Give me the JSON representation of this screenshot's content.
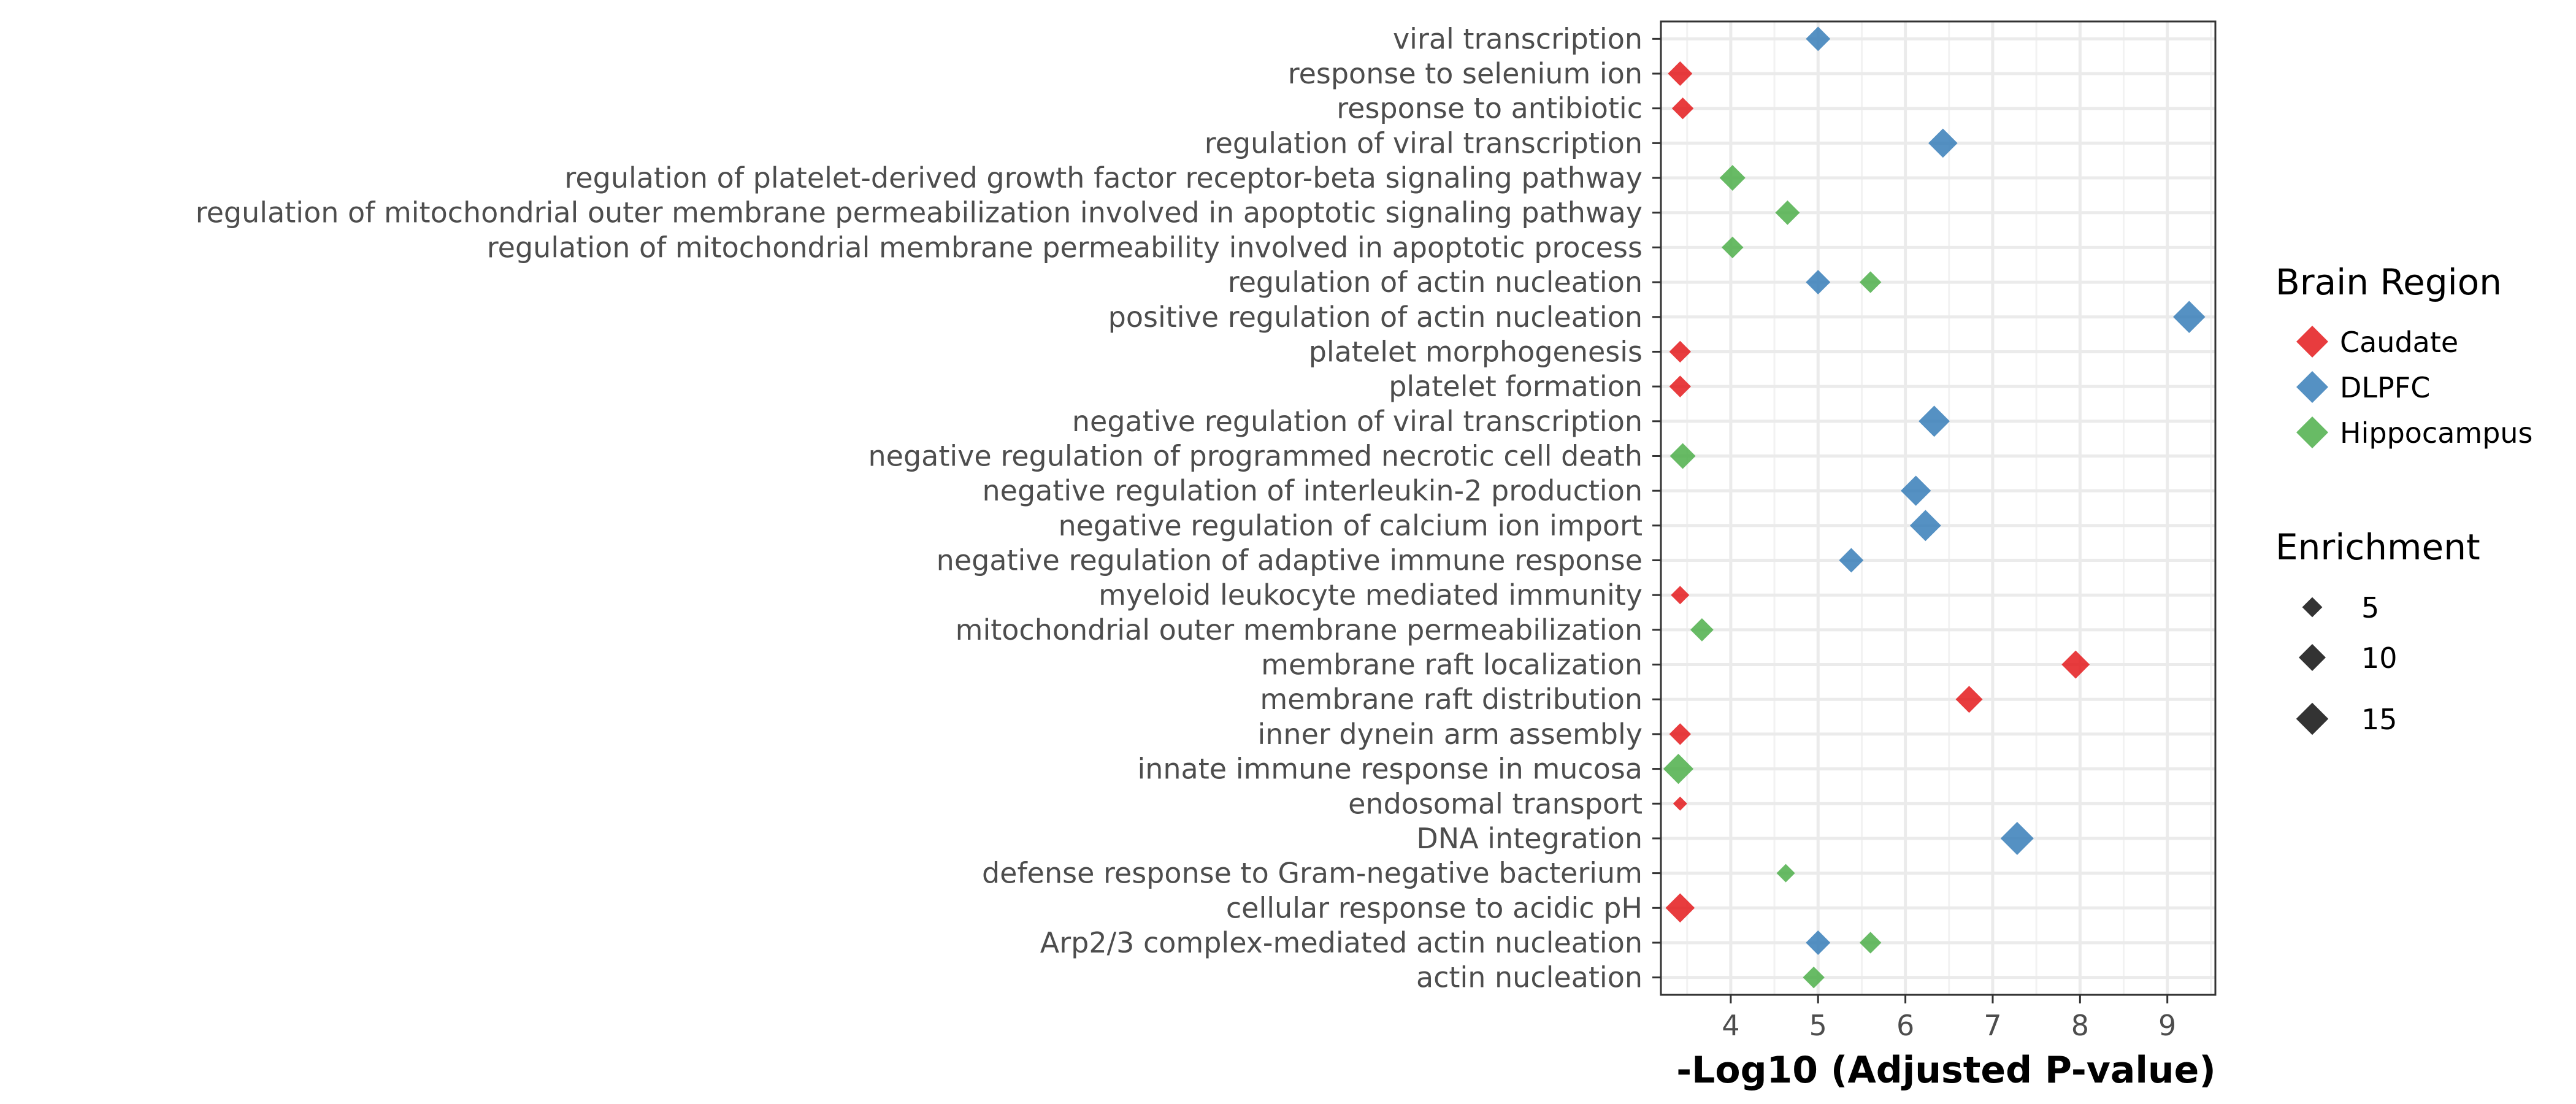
{
  "chart_data": {
    "type": "scatter",
    "xlabel": "-Log10 (Adjusted P-value)",
    "ylabel": "",
    "xlim": [
      3.2,
      9.55
    ],
    "xticks": [
      4,
      5,
      6,
      7,
      8,
      9
    ],
    "grid": true,
    "legend_placement": "right",
    "categories": [
      "viral transcription",
      "response to selenium ion",
      "response to antibiotic",
      "regulation of viral transcription",
      "regulation of platelet-derived growth factor receptor-beta signaling pathway",
      "regulation of mitochondrial outer membrane permeabilization involved in apoptotic signaling pathway",
      "regulation of mitochondrial membrane permeability involved in apoptotic process",
      "regulation of actin nucleation",
      "positive regulation of actin nucleation",
      "platelet morphogenesis",
      "platelet formation",
      "negative regulation of viral transcription",
      "negative regulation of programmed necrotic cell death",
      "negative regulation of interleukin-2 production",
      "negative regulation of calcium ion import",
      "negative regulation of adaptive immune response",
      "myeloid leukocyte mediated immunity",
      "mitochondrial outer membrane permeabilization",
      "membrane raft localization",
      "membrane raft distribution",
      "inner dynein arm assembly",
      "innate immune response in mucosa",
      "endosomal transport",
      "DNA integration",
      "defense response to Gram-negative bacterium",
      "cellular response to acidic pH",
      "Arp2/3 complex-mediated actin nucleation",
      "actin nucleation"
    ],
    "series": [
      {
        "name": "Caudate",
        "color": "#e41a1c",
        "points": [
          {
            "term": "response to selenium ion",
            "x": 3.42,
            "enrichment": 8
          },
          {
            "term": "response to antibiotic",
            "x": 3.45,
            "enrichment": 6
          },
          {
            "term": "platelet morphogenesis",
            "x": 3.42,
            "enrichment": 6
          },
          {
            "term": "platelet formation",
            "x": 3.42,
            "enrichment": 6
          },
          {
            "term": "myeloid leukocyte mediated immunity",
            "x": 3.42,
            "enrichment": 4
          },
          {
            "term": "membrane raft localization",
            "x": 7.95,
            "enrichment": 11
          },
          {
            "term": "membrane raft distribution",
            "x": 6.73,
            "enrichment": 10
          },
          {
            "term": "inner dynein arm assembly",
            "x": 3.42,
            "enrichment": 6
          },
          {
            "term": "endosomal transport",
            "x": 3.42,
            "enrichment": 2
          },
          {
            "term": "cellular response to acidic pH",
            "x": 3.42,
            "enrichment": 12
          }
        ]
      },
      {
        "name": "DLPFC",
        "color": "#377eb8",
        "points": [
          {
            "term": "viral transcription",
            "x": 5.0,
            "enrichment": 8
          },
          {
            "term": "regulation of viral transcription",
            "x": 6.43,
            "enrichment": 12
          },
          {
            "term": "regulation of actin nucleation",
            "x": 5.0,
            "enrichment": 8
          },
          {
            "term": "positive regulation of actin nucleation",
            "x": 9.25,
            "enrichment": 15
          },
          {
            "term": "negative regulation of viral transcription",
            "x": 6.33,
            "enrichment": 14
          },
          {
            "term": "negative regulation of interleukin-2 production",
            "x": 6.12,
            "enrichment": 13
          },
          {
            "term": "negative regulation of calcium ion import",
            "x": 6.23,
            "enrichment": 14
          },
          {
            "term": "negative regulation of adaptive immune response",
            "x": 5.38,
            "enrichment": 8
          },
          {
            "term": "DNA integration",
            "x": 7.28,
            "enrichment": 16
          },
          {
            "term": "Arp2/3 complex-mediated actin nucleation",
            "x": 5.0,
            "enrichment": 8
          }
        ]
      },
      {
        "name": "Hippocampus",
        "color": "#4daf4a",
        "points": [
          {
            "term": "regulation of platelet-derived growth factor receptor-beta signaling pathway",
            "x": 4.02,
            "enrichment": 9
          },
          {
            "term": "regulation of mitochondrial outer membrane permeabilization involved in apoptotic signaling pathway",
            "x": 4.65,
            "enrichment": 8
          },
          {
            "term": "regulation of mitochondrial membrane permeability involved in apoptotic process",
            "x": 4.02,
            "enrichment": 6
          },
          {
            "term": "regulation of actin nucleation",
            "x": 5.6,
            "enrichment": 6
          },
          {
            "term": "negative regulation of programmed necrotic cell death",
            "x": 3.45,
            "enrichment": 9
          },
          {
            "term": "mitochondrial outer membrane permeabilization",
            "x": 3.67,
            "enrichment": 7
          },
          {
            "term": "innate immune response in mucosa",
            "x": 3.4,
            "enrichment": 13
          },
          {
            "term": "defense response to Gram-negative bacterium",
            "x": 4.63,
            "enrichment": 4
          },
          {
            "term": "Arp2/3 complex-mediated actin nucleation",
            "x": 5.6,
            "enrichment": 6
          },
          {
            "term": "actin nucleation",
            "x": 4.95,
            "enrichment": 6
          }
        ]
      }
    ],
    "legend": {
      "color_title": "Brain Region",
      "color_items": [
        "Caudate",
        "DLPFC",
        "Hippocampus"
      ],
      "size_title": "Enrichment",
      "size_items": [
        5,
        10,
        15
      ]
    }
  }
}
